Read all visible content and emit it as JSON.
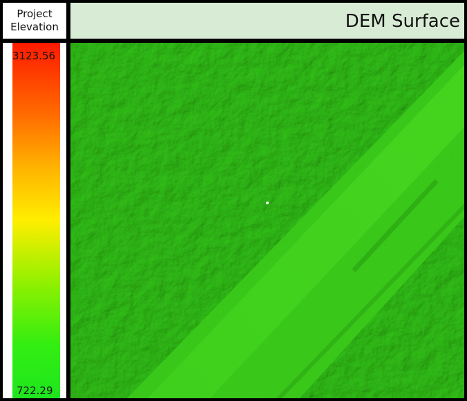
{
  "legend": {
    "title_line1": "Project",
    "title_line2": "Elevation",
    "max_value": "3123.56",
    "min_value": "722.29"
  },
  "header": {
    "title": "DEM Surface"
  },
  "map": {
    "surface_color": "#33bb17"
  }
}
